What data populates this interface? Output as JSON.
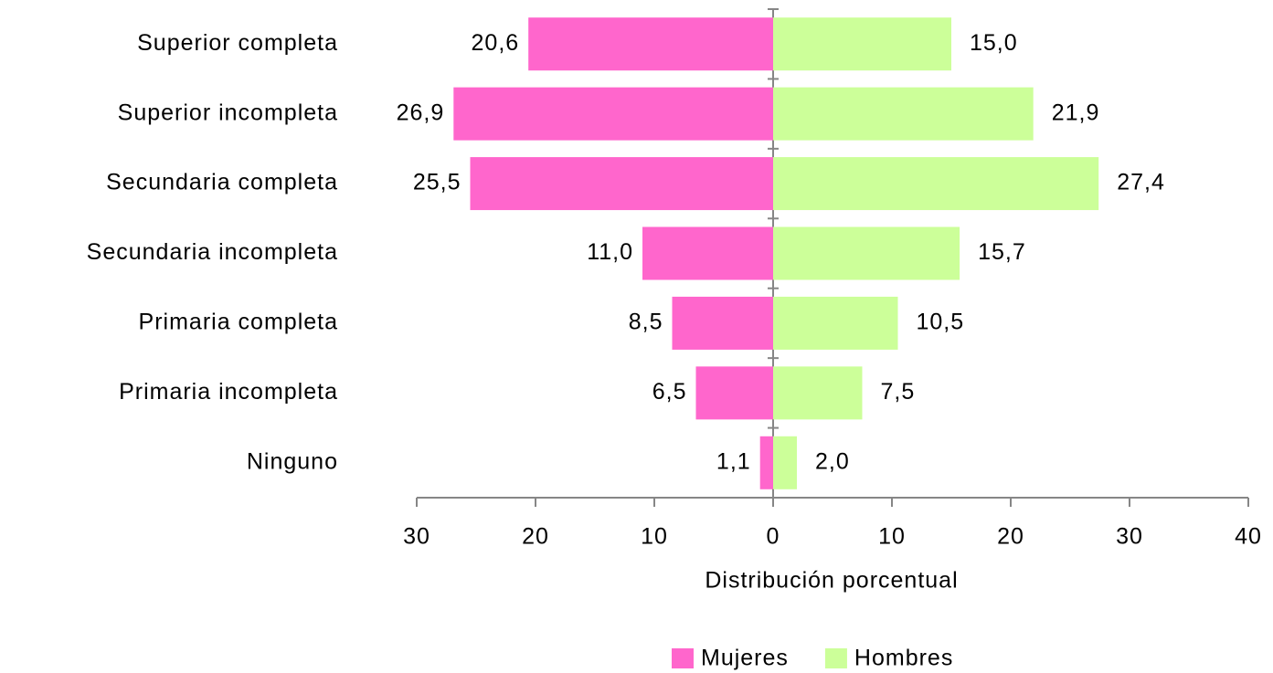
{
  "chart_data": {
    "type": "bar",
    "orientation": "horizontal",
    "x_label": "Distribución porcentual",
    "categories": [
      "Superior completa",
      "Superior incompleta",
      "Secundaria completa",
      "Secundaria incompleta",
      "Primaria completa",
      "Primaria incompleta",
      "Ninguno"
    ],
    "series": [
      {
        "name": "Mujeres",
        "color": "#ff66cc",
        "values": [
          -20.6,
          -26.9,
          -25.5,
          -11.0,
          -8.5,
          -6.5,
          -1.1
        ],
        "value_labels": [
          "20,6",
          "26,9",
          "25,5",
          "11,0",
          "8,5",
          "6,5",
          "1,1"
        ]
      },
      {
        "name": "Hombres",
        "color": "#ccff99",
        "values": [
          15.0,
          21.9,
          27.4,
          15.7,
          10.5,
          7.5,
          2.0
        ],
        "value_labels": [
          "15,0",
          "21,9",
          "27,4",
          "15,7",
          "10,5",
          "7,5",
          "2,0"
        ]
      }
    ],
    "xlim": [
      -30,
      40
    ],
    "xticks": [
      {
        "value": -30,
        "label": "30"
      },
      {
        "value": -20,
        "label": "20"
      },
      {
        "value": -10,
        "label": "10"
      },
      0,
      10,
      20,
      30,
      40
    ],
    "legend": "bottom"
  }
}
